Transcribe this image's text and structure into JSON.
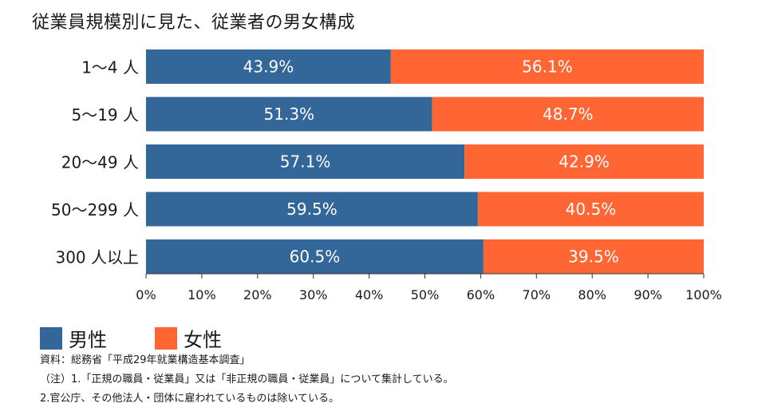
{
  "title": "従業員規模別に見た、従業者の男女構成",
  "chart_data": {
    "type": "bar",
    "orientation": "horizontal",
    "stacked": true,
    "categories": [
      "1～4 人",
      "5～19 人",
      "20～49 人",
      "50～299 人",
      "300 人以上"
    ],
    "series": [
      {
        "name": "男性",
        "color": "#336699",
        "values": [
          43.9,
          51.3,
          57.1,
          59.5,
          60.5
        ]
      },
      {
        "name": "女性",
        "color": "#FF6633",
        "values": [
          56.1,
          48.7,
          42.9,
          40.5,
          39.5
        ]
      }
    ],
    "xlim": [
      0,
      100
    ],
    "x_ticks": [
      "0%",
      "10%",
      "20%",
      "30%",
      "40%",
      "50%",
      "60%",
      "70%",
      "80%",
      "90%",
      "100%"
    ],
    "grid": false,
    "legend_placement": "bottom-left"
  },
  "legend": {
    "male": "男性",
    "female": "女性"
  },
  "notes": [
    "資料：総務省「平成29年就業構造基本調査」",
    "（注）1.「正規の職員・従業員」又は「非正規の職員・従業員」について集計している。",
    "2.官公庁、その他法人・団体に雇われているものは除いている。"
  ]
}
